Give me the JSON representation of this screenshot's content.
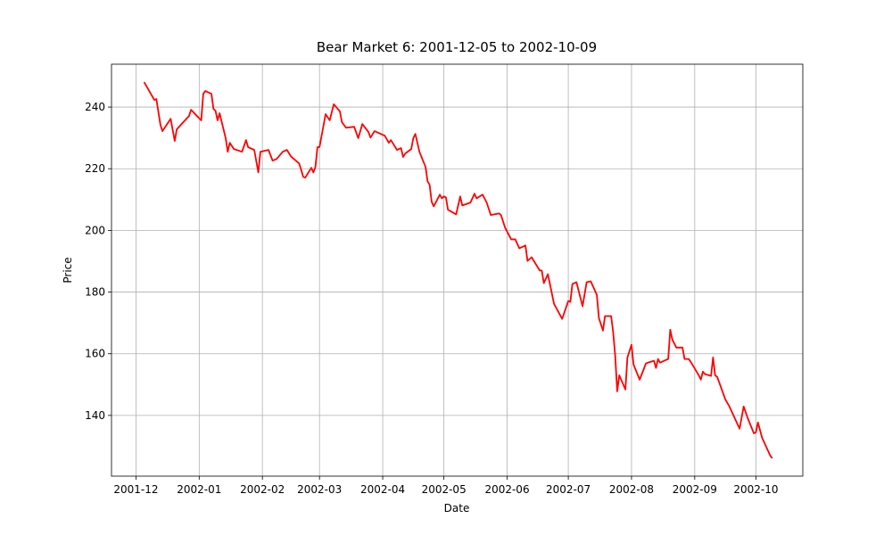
{
  "chart_data": {
    "type": "line",
    "title": "Bear Market 6: 2001-12-05 to 2002-10-09",
    "x_label": "Date",
    "y_label": "Price",
    "x": [
      "2001-12-05",
      "2001-12-10",
      "2001-12-11",
      "2001-12-13",
      "2001-12-14",
      "2001-12-18",
      "2001-12-20",
      "2001-12-21",
      "2001-12-27",
      "2001-12-28",
      "2002-01-02",
      "2002-01-03",
      "2002-01-04",
      "2002-01-07",
      "2002-01-08",
      "2002-01-09",
      "2002-01-10",
      "2002-01-11",
      "2002-01-14",
      "2002-01-15",
      "2002-01-16",
      "2002-01-18",
      "2002-01-22",
      "2002-01-24",
      "2002-01-25",
      "2002-01-28",
      "2002-01-30",
      "2002-01-31",
      "2002-02-04",
      "2002-02-06",
      "2002-02-08",
      "2002-02-11",
      "2002-02-13",
      "2002-02-15",
      "2002-02-19",
      "2002-02-20",
      "2002-02-21",
      "2002-02-22",
      "2002-02-25",
      "2002-02-26",
      "2002-02-27",
      "2002-02-28",
      "2002-03-01",
      "2002-03-04",
      "2002-03-06",
      "2002-03-08",
      "2002-03-11",
      "2002-03-12",
      "2002-03-14",
      "2002-03-18",
      "2002-03-20",
      "2002-03-22",
      "2002-03-25",
      "2002-03-26",
      "2002-03-28",
      "2002-04-02",
      "2002-04-04",
      "2002-04-05",
      "2002-04-08",
      "2002-04-10",
      "2002-04-11",
      "2002-04-12",
      "2002-04-15",
      "2002-04-16",
      "2002-04-17",
      "2002-04-19",
      "2002-04-22",
      "2002-04-23",
      "2002-04-24",
      "2002-04-25",
      "2002-04-26",
      "2002-04-29",
      "2002-04-30",
      "2002-05-01",
      "2002-05-02",
      "2002-05-03",
      "2002-05-07",
      "2002-05-09",
      "2002-05-10",
      "2002-05-14",
      "2002-05-16",
      "2002-05-17",
      "2002-05-20",
      "2002-05-22",
      "2002-05-24",
      "2002-05-28",
      "2002-05-29",
      "2002-05-31",
      "2002-06-03",
      "2002-06-05",
      "2002-06-07",
      "2002-06-10",
      "2002-06-11",
      "2002-06-13",
      "2002-06-17",
      "2002-06-18",
      "2002-06-19",
      "2002-06-21",
      "2002-06-24",
      "2002-06-28",
      "2002-07-01",
      "2002-07-02",
      "2002-07-03",
      "2002-07-05",
      "2002-07-08",
      "2002-07-10",
      "2002-07-12",
      "2002-07-15",
      "2002-07-16",
      "2002-07-18",
      "2002-07-19",
      "2002-07-22",
      "2002-07-23",
      "2002-07-24",
      "2002-07-25",
      "2002-07-26",
      "2002-07-29",
      "2002-07-30",
      "2002-08-01",
      "2002-08-02",
      "2002-08-05",
      "2002-08-07",
      "2002-08-08",
      "2002-08-09",
      "2002-08-12",
      "2002-08-13",
      "2002-08-14",
      "2002-08-15",
      "2002-08-19",
      "2002-08-20",
      "2002-08-21",
      "2002-08-23",
      "2002-08-26",
      "2002-08-27",
      "2002-08-29",
      "2002-08-30",
      "2002-09-03",
      "2002-09-04",
      "2002-09-05",
      "2002-09-06",
      "2002-09-09",
      "2002-09-10",
      "2002-09-11",
      "2002-09-12",
      "2002-09-13",
      "2002-09-16",
      "2002-09-18",
      "2002-09-23",
      "2002-09-25",
      "2002-09-27",
      "2002-09-30",
      "2002-10-01",
      "2002-10-02",
      "2002-10-04",
      "2002-10-08",
      "2002-10-09"
    ],
    "series": [
      {
        "name": "Price",
        "color": "#ff0000",
        "values": [
          248.1,
          242.3,
          242.6,
          234.2,
          232.2,
          236.2,
          229,
          232.8,
          237.1,
          239.1,
          235.7,
          244.3,
          245.2,
          244.3,
          239.4,
          238.8,
          235.7,
          238,
          229.9,
          225.5,
          228.4,
          226.4,
          225.5,
          229.3,
          227,
          226.1,
          218.8,
          225.5,
          226.1,
          222.6,
          223.2,
          225.5,
          226.1,
          224,
          221.7,
          219.7,
          217.4,
          217.1,
          220.3,
          218.8,
          220.6,
          227,
          227,
          237.7,
          235.7,
          240.9,
          238.6,
          235.1,
          233.3,
          233.6,
          229.9,
          234.5,
          231.9,
          230.1,
          232.2,
          230.7,
          228.4,
          229.3,
          226.1,
          226.7,
          223.8,
          224.9,
          226.4,
          229.9,
          231.3,
          225.5,
          220.6,
          215.9,
          214.8,
          209.3,
          207.8,
          211.6,
          210.4,
          211,
          210.7,
          206.7,
          205.2,
          211,
          208.1,
          209,
          211.9,
          210.4,
          211.6,
          209,
          205,
          205.5,
          205,
          200.9,
          197.1,
          197.1,
          194.2,
          195.1,
          190.1,
          191.3,
          187,
          187,
          182.9,
          185.8,
          176.2,
          171.3,
          177.1,
          176.8,
          182.6,
          183.2,
          175.4,
          183.2,
          183.5,
          179.1,
          171.6,
          167.5,
          172.2,
          172.2,
          167,
          159.4,
          147.8,
          153,
          148.4,
          158.8,
          162.9,
          156.5,
          151.6,
          155,
          156.8,
          157.1,
          157.7,
          155.4,
          158.3,
          157.1,
          158.3,
          167.8,
          164.6,
          162,
          162,
          158.3,
          158.3,
          157.4,
          153,
          151.6,
          154.2,
          153.4,
          152.8,
          158.8,
          153,
          152.5,
          150.7,
          145.2,
          142.9,
          135.7,
          142.9,
          139.1,
          134.2,
          134.5,
          137.7,
          132.8,
          127,
          126.1
        ]
      }
    ],
    "xlim": [
      "2001-11-19",
      "2002-10-24"
    ],
    "xticks": [
      "2001-12",
      "2002-01",
      "2002-02",
      "2002-03",
      "2002-04",
      "2002-05",
      "2002-06",
      "2002-07",
      "2002-08",
      "2002-09",
      "2002-10"
    ],
    "ylim": [
      120.3,
      253.9
    ],
    "yticks": [
      140,
      160,
      180,
      200,
      220,
      240
    ],
    "grid": true
  }
}
